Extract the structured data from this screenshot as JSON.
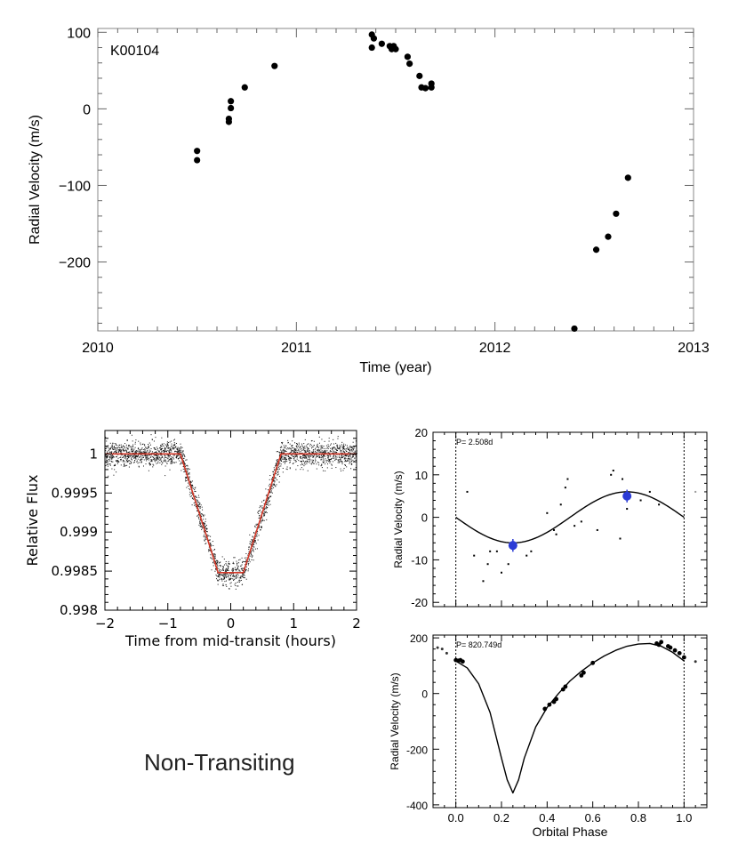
{
  "chart_data": [
    {
      "id": "main-rv",
      "type": "scatter",
      "annotation": "K00104",
      "xlabel": "Time (year)",
      "ylabel": "Radial Velocity (m/s)",
      "xlim": [
        2010,
        2013
      ],
      "ylim": [
        -290,
        105
      ],
      "xticks": [
        2010,
        2011,
        2012,
        2013
      ],
      "yticks": [
        -200,
        -100,
        0,
        100
      ],
      "x": [
        2010.5,
        2010.5,
        2010.66,
        2010.66,
        2010.67,
        2010.67,
        2010.74,
        2010.89,
        2011.38,
        2011.39,
        2011.38,
        2011.43,
        2011.47,
        2011.48,
        2011.5,
        2011.49,
        2011.56,
        2011.57,
        2011.62,
        2011.63,
        2011.65,
        2011.68,
        2011.68,
        2012.4,
        2012.51,
        2012.57,
        2012.61,
        2012.67
      ],
      "y": [
        -55,
        -67,
        -13,
        -17,
        10,
        1,
        28,
        56,
        97,
        92,
        80,
        85,
        82,
        78,
        78,
        82,
        68,
        59,
        43,
        28,
        27,
        33,
        28,
        -287,
        -184,
        -167,
        -137,
        -90
      ]
    },
    {
      "id": "transit",
      "type": "line",
      "xlabel": "Time from mid-transit (hours)",
      "ylabel": "Relative Flux",
      "xlim": [
        -2,
        2
      ],
      "ylim": [
        0.998,
        1.0003
      ],
      "xticks": [
        -2,
        -1,
        0,
        1,
        2
      ],
      "yticks": [
        0.998,
        0.9985,
        0.999,
        0.9995,
        1.0
      ],
      "ytick_labels": [
        "0.998",
        "0.9985",
        "0.999",
        "0.9995",
        "1"
      ],
      "model_x": [
        -2,
        -0.8,
        -0.2,
        0.2,
        0.8,
        2
      ],
      "model_y": [
        1.0,
        1.0,
        0.99848,
        0.99848,
        1.0,
        1.0
      ],
      "scatter_note": "dense photometric points around the model"
    },
    {
      "id": "phase-short",
      "type": "scatter",
      "annotation": "P= 2.508d",
      "ylabel": "Radial Velocity (m/s)",
      "xlim": [
        -0.1,
        1.1
      ],
      "ylim": [
        -21,
        20
      ],
      "yticks": [
        -20,
        -10,
        0,
        10,
        20
      ],
      "amplitude": 6,
      "x": [
        0.05,
        0.08,
        0.12,
        0.14,
        0.15,
        0.18,
        0.2,
        0.23,
        0.25,
        0.31,
        0.33,
        0.4,
        0.43,
        0.44,
        0.46,
        0.48,
        0.49,
        0.52,
        0.55,
        0.62,
        0.68,
        0.69,
        0.72,
        0.73,
        0.75,
        0.81,
        0.85,
        0.89,
        1.05
      ],
      "y": [
        6,
        -9,
        -15,
        -11,
        -8,
        -8,
        -13,
        -11,
        -7,
        -9,
        -8,
        1,
        -3,
        -4,
        3,
        7,
        9,
        -2,
        -1,
        -3,
        10,
        11,
        -5,
        9,
        2,
        4,
        6,
        3,
        6
      ],
      "binned_x": [
        0.25,
        0.75
      ],
      "binned_y": [
        -6.6,
        5.0
      ],
      "binned_err": [
        1.5,
        1.5
      ],
      "vlines": [
        0.0,
        1.0
      ]
    },
    {
      "id": "phase-long",
      "type": "scatter",
      "annotation": "P= 820.749d",
      "xlabel": "Orbital Phase",
      "ylabel": "Radial Velocity (m/s)",
      "xlim": [
        -0.1,
        1.1
      ],
      "ylim": [
        -410,
        210
      ],
      "xticks": [
        0.0,
        0.2,
        0.4,
        0.6,
        0.8,
        1.0
      ],
      "xtick_labels": [
        "0.0",
        "0.2",
        "0.4",
        "0.6",
        "0.8",
        "1.0"
      ],
      "yticks": [
        -400,
        -200,
        0,
        200
      ],
      "model_x": [
        0.0,
        0.05,
        0.1,
        0.15,
        0.2,
        0.225,
        0.25,
        0.275,
        0.3,
        0.35,
        0.4,
        0.45,
        0.5,
        0.55,
        0.6,
        0.65,
        0.7,
        0.75,
        0.8,
        0.85,
        0.9,
        0.95,
        1.0
      ],
      "model_y": [
        117,
        92,
        35,
        -68,
        -232,
        -310,
        -357,
        -310,
        -232,
        -120,
        -50,
        0,
        45,
        80,
        110,
        135,
        155,
        170,
        178,
        180,
        170,
        148,
        117
      ],
      "x": [
        -0.08,
        -0.06,
        -0.04,
        0.0,
        0.01,
        0.02,
        0.03,
        0.39,
        0.41,
        0.43,
        0.44,
        0.47,
        0.48,
        0.55,
        0.56,
        0.6,
        0.88,
        0.89,
        0.9,
        0.93,
        0.94,
        0.96,
        0.98,
        1.0,
        1.05
      ],
      "y": [
        165,
        160,
        145,
        120,
        118,
        120,
        115,
        -55,
        -40,
        -30,
        -20,
        15,
        25,
        65,
        75,
        110,
        180,
        175,
        185,
        170,
        165,
        155,
        145,
        130,
        115
      ],
      "vlines": [
        0.0,
        1.0
      ]
    }
  ],
  "labels": {
    "non_transiting": "Non-Transiting"
  }
}
